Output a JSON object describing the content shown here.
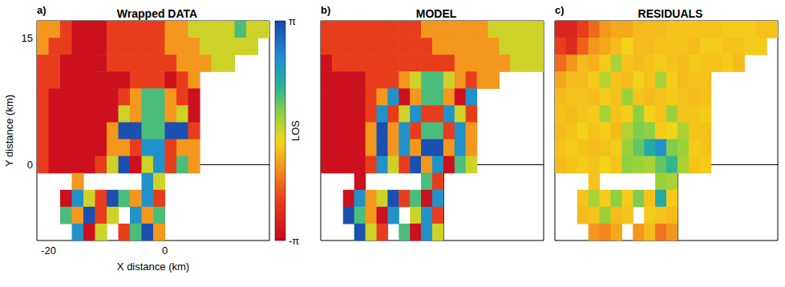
{
  "chart_data": [
    {
      "type": "heatmap",
      "title": "Wrapped DATA",
      "panel_label": "a)",
      "x_label": "X distance (km)",
      "y_label": "Y distance (km)",
      "xlim": [
        -22,
        18
      ],
      "ylim": [
        -9,
        17
      ],
      "xticks": [
        -20,
        0
      ],
      "yticks": [
        0,
        15
      ],
      "grid": false,
      "colorbar": {
        "label": "LOS",
        "range": [
          -3.1416,
          3.1416
        ],
        "ticks": [
          {
            "value": -3.1416,
            "label": "-π"
          },
          {
            "value": 3.1416,
            "label": "π"
          }
        ]
      },
      "x": [
        -21,
        -19,
        -17,
        -15,
        -13,
        -11,
        -9,
        -7,
        -5,
        -3,
        -1,
        1,
        3,
        5,
        7,
        9,
        11,
        13,
        15,
        17
      ],
      "y": [
        16,
        14,
        12,
        10,
        8,
        6,
        4,
        2,
        0,
        -2,
        -4,
        -6,
        -8
      ],
      "values": [
        [
          -1,
          -1,
          -2,
          -3,
          -3,
          -3,
          -2,
          -2,
          -2,
          -2,
          -2,
          -1,
          -1,
          0,
          0,
          0,
          0,
          1,
          0,
          0
        ],
        [
          -1,
          -2,
          -2,
          -3,
          -3,
          -3,
          -2,
          -2,
          -2,
          -2,
          -2,
          -1,
          -1,
          -1,
          0,
          0,
          0,
          0,
          0,
          null
        ],
        [
          -2,
          -2,
          -3,
          -3,
          -3,
          -3,
          -2,
          -2,
          -2,
          -2,
          -2,
          -2,
          -1,
          -1,
          -1,
          0,
          0,
          null,
          null,
          null
        ],
        [
          -2,
          -2,
          -3,
          -3,
          -3,
          -3,
          -3,
          -3,
          -2,
          -2,
          -2,
          -3,
          -2,
          -1,
          null,
          null,
          null,
          null,
          null,
          null
        ],
        [
          -2,
          -3,
          -3,
          -3,
          -3,
          -3,
          -3,
          -2,
          -1,
          1,
          1,
          -1,
          -2,
          -3,
          null,
          null,
          null,
          null,
          null,
          null
        ],
        [
          -2,
          -3,
          -3,
          -3,
          -3,
          -3,
          -3,
          0,
          -1,
          1,
          1,
          -1,
          0,
          -3,
          null,
          null,
          null,
          null,
          null,
          null
        ],
        [
          -2,
          -3,
          -3,
          -3,
          -3,
          -3,
          -1,
          3,
          3,
          1,
          1,
          3,
          3,
          -2,
          null,
          null,
          null,
          null,
          null,
          null
        ],
        [
          -2,
          -3,
          -3,
          -3,
          -3,
          -3,
          -1,
          -1,
          -2,
          2,
          2,
          -2,
          -1,
          -1,
          null,
          null,
          null,
          null,
          null,
          null
        ],
        [
          -2,
          -3,
          -3,
          -3,
          -3,
          -2,
          0,
          3,
          -3,
          0,
          2,
          -2,
          1,
          -1,
          null,
          null,
          null,
          null,
          null,
          null
        ],
        [
          null,
          null,
          null,
          -1,
          null,
          null,
          null,
          null,
          null,
          2,
          0,
          null,
          null,
          null,
          null,
          null,
          null,
          null,
          null,
          null
        ],
        [
          null,
          null,
          -3,
          2,
          0,
          -2,
          3,
          1,
          -1,
          2,
          -2,
          null,
          null,
          null,
          null,
          null,
          null,
          null,
          null,
          null
        ],
        [
          null,
          null,
          1,
          -1,
          3,
          -2,
          0,
          null,
          2,
          -1,
          1,
          null,
          null,
          null,
          null,
          null,
          null,
          null,
          null,
          null
        ],
        [
          null,
          null,
          null,
          2,
          -3,
          0,
          null,
          -2,
          1,
          3,
          -1,
          null,
          null,
          null,
          null,
          null,
          null,
          null,
          null,
          null
        ]
      ]
    },
    {
      "type": "heatmap",
      "title": "MODEL",
      "panel_label": "b)",
      "xlim": [
        -22,
        18
      ],
      "ylim": [
        -9,
        17
      ],
      "xticks": [
        -20,
        0
      ],
      "yticks": [
        0,
        15
      ],
      "grid": false,
      "tick_labels": false,
      "x": [
        -21,
        -19,
        -17,
        -15,
        -13,
        -11,
        -9,
        -7,
        -5,
        -3,
        -1,
        1,
        3,
        5,
        7,
        9,
        11,
        13,
        15,
        17
      ],
      "y": [
        16,
        14,
        12,
        10,
        8,
        6,
        4,
        2,
        0,
        -2,
        -4,
        -6,
        -8
      ],
      "values": [
        [
          -2,
          -2,
          -2,
          -2,
          -2,
          -2,
          -2,
          -2,
          -2,
          -1,
          -1,
          -1,
          -1,
          -1,
          -1,
          0,
          0,
          0,
          0,
          0
        ],
        [
          -2,
          -2,
          -2,
          -2,
          -2,
          -2,
          -2,
          -2,
          -2,
          -2,
          -1,
          -1,
          -1,
          -1,
          -1,
          -1,
          0,
          0,
          0,
          0
        ],
        [
          -3,
          -2,
          -2,
          -2,
          -2,
          -2,
          -2,
          -2,
          -2,
          -2,
          -2,
          -2,
          -1,
          -1,
          -1,
          -1,
          -1,
          0,
          0,
          0
        ],
        [
          -3,
          -3,
          -3,
          -3,
          -2,
          -2,
          -2,
          -1,
          0,
          1,
          1,
          0,
          -1,
          -2,
          -1,
          -1,
          null,
          null,
          null,
          null
        ],
        [
          -3,
          -3,
          -3,
          -3,
          -2,
          -1,
          2,
          -3,
          -1,
          1,
          1,
          -1,
          -3,
          2,
          null,
          null,
          null,
          null,
          null,
          null
        ],
        [
          -3,
          -3,
          -3,
          -3,
          -2,
          2,
          -2,
          0,
          2,
          -2,
          -2,
          2,
          0,
          -2,
          null,
          null,
          null,
          null,
          null,
          null
        ],
        [
          -3,
          -3,
          -3,
          -3,
          -1,
          3,
          -1,
          2,
          -2,
          1,
          1,
          -2,
          2,
          -1,
          null,
          null,
          null,
          null,
          null,
          null
        ],
        [
          -3,
          -3,
          -3,
          -3,
          -1,
          3,
          -1,
          2,
          -1,
          3,
          3,
          -1,
          2,
          -1,
          null,
          null,
          null,
          null,
          null,
          null
        ],
        [
          -3,
          -3,
          -3,
          -3,
          -2,
          2,
          0,
          -2,
          3,
          -1,
          2,
          -3,
          1,
          0,
          null,
          null,
          null,
          null,
          null,
          null
        ],
        [
          null,
          null,
          null,
          -3,
          null,
          null,
          null,
          null,
          null,
          1,
          -2,
          null,
          null,
          null,
          null,
          null,
          null,
          null,
          null,
          null
        ],
        [
          null,
          null,
          -3,
          2,
          -1,
          0,
          3,
          -2,
          1,
          -3,
          2,
          null,
          null,
          null,
          null,
          null,
          null,
          null,
          null,
          null
        ],
        [
          null,
          null,
          3,
          1,
          -1,
          -3,
          2,
          null,
          0,
          2,
          -2,
          null,
          null,
          null,
          null,
          null,
          null,
          null,
          null,
          null
        ],
        [
          null,
          null,
          null,
          3,
          0,
          -2,
          null,
          1,
          -3,
          2,
          0,
          null,
          null,
          null,
          null,
          null,
          null,
          null,
          null,
          null
        ]
      ]
    },
    {
      "type": "heatmap",
      "title": "RESIDUALS",
      "panel_label": "c)",
      "xlim": [
        -22,
        18
      ],
      "ylim": [
        -9,
        17
      ],
      "xticks": [
        -20,
        0
      ],
      "yticks": [
        0,
        15
      ],
      "grid": false,
      "tick_labels": false,
      "x": [
        -21,
        -19,
        -17,
        -15,
        -13,
        -11,
        -9,
        -7,
        -5,
        -3,
        -1,
        1,
        3,
        5,
        7,
        9,
        11,
        13,
        15,
        17
      ],
      "y": [
        16,
        14,
        12,
        10,
        8,
        6,
        4,
        2,
        0,
        -2,
        -4,
        -6,
        -8
      ],
      "values": [
        [
          -2.5,
          -2.5,
          -2,
          -1.5,
          -1,
          -0.8,
          -0.8,
          -0.6,
          -0.6,
          -0.6,
          -0.5,
          -0.5,
          -0.5,
          -0.5,
          -0.5,
          -0.4,
          -0.4,
          -0.4,
          -0.5,
          -0.5
        ],
        [
          -2,
          -2.4,
          -1.6,
          -1,
          -0.8,
          -0.6,
          -0.3,
          -0.6,
          -0.6,
          -0.5,
          -0.5,
          -0.5,
          -0.6,
          -0.4,
          -0.4,
          -0.5,
          -0.5,
          -0.4,
          -0.4,
          null
        ],
        [
          -1.5,
          -1,
          -0.6,
          -0.7,
          -0.4,
          0.3,
          -0.5,
          -0.6,
          -0.5,
          -0.4,
          -0.5,
          -0.6,
          -0.4,
          -0.5,
          -0.5,
          -0.4,
          -0.6,
          null,
          null,
          null
        ],
        [
          -0.8,
          -0.6,
          -0.6,
          -0.4,
          0.2,
          -0.5,
          -0.6,
          -0.3,
          -0.5,
          0.3,
          -0.4,
          -0.6,
          -0.5,
          -0.5,
          null,
          null,
          null,
          null,
          null,
          null
        ],
        [
          -0.6,
          -0.5,
          -0.5,
          -0.6,
          -0.4,
          -0.5,
          0.4,
          -0.5,
          -0.6,
          -0.5,
          -0.4,
          -0.5,
          -0.6,
          -0.5,
          null,
          null,
          null,
          null,
          null,
          null
        ],
        [
          -0.5,
          -0.6,
          -0.5,
          -0.4,
          0.3,
          -0.5,
          -0.4,
          0.5,
          -0.3,
          -0.5,
          0.4,
          -0.5,
          -0.5,
          -0.4,
          null,
          null,
          null,
          null,
          null,
          null
        ],
        [
          -0.6,
          -0.5,
          -0.3,
          -0.5,
          -0.4,
          -0.6,
          0.2,
          0.6,
          0.5,
          -0.4,
          -0.3,
          0.3,
          -0.5,
          -0.5,
          null,
          null,
          null,
          null,
          null,
          null
        ],
        [
          -0.5,
          -0.4,
          -0.5,
          -0.6,
          -0.5,
          -0.4,
          0.4,
          0.8,
          1.5,
          2,
          0.6,
          0.4,
          -0.4,
          -0.5,
          null,
          null,
          null,
          null,
          null,
          null
        ],
        [
          -0.6,
          -0.5,
          -0.4,
          -0.5,
          -0.3,
          -0.5,
          0.5,
          0.4,
          0.3,
          0.8,
          1.2,
          0.3,
          -0.5,
          -0.4,
          null,
          null,
          null,
          null,
          null,
          null
        ],
        [
          null,
          null,
          null,
          -0.5,
          null,
          null,
          null,
          null,
          null,
          0.4,
          0.3,
          null,
          null,
          null,
          null,
          null,
          null,
          null,
          null,
          null
        ],
        [
          null,
          null,
          -0.5,
          0.3,
          -0.4,
          0.5,
          -0.4,
          0.6,
          -0.5,
          1.5,
          -0.4,
          null,
          null,
          null,
          null,
          null,
          null,
          null,
          null,
          null
        ],
        [
          null,
          null,
          -0.6,
          -0.5,
          0.4,
          -0.6,
          -0.5,
          null,
          -0.4,
          -0.5,
          -0.6,
          null,
          null,
          null,
          null,
          null,
          null,
          null,
          null,
          null
        ],
        [
          null,
          null,
          null,
          -1,
          -1.2,
          -0.8,
          null,
          -1,
          -0.6,
          -1.4,
          -1,
          null,
          null,
          null,
          null,
          null,
          null,
          null,
          null,
          null
        ]
      ]
    }
  ]
}
